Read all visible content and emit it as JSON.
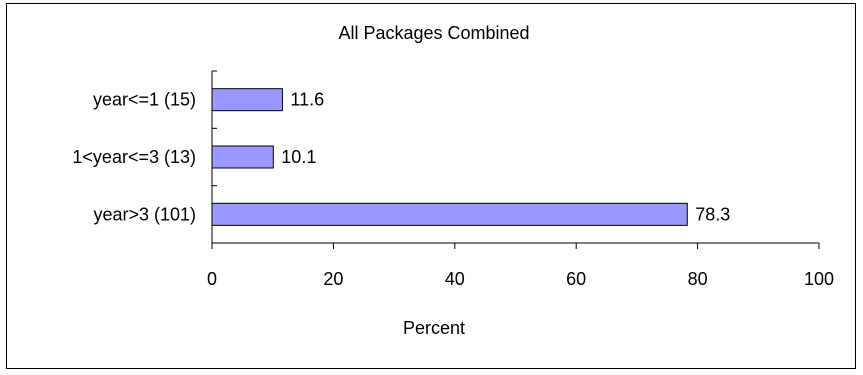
{
  "chart_data": {
    "type": "bar",
    "orientation": "horizontal",
    "title": "All Packages Combined",
    "xlabel": "Percent",
    "ylabel": "",
    "categories": [
      "year<=1  (15)",
      "1<year<=3 (13)",
      "year>3  (101)"
    ],
    "values": [
      11.6,
      10.1,
      78.3
    ],
    "data_labels": [
      "11.6",
      "10.1",
      "78.3"
    ],
    "xlim": [
      0,
      100
    ],
    "x_ticks": [
      0,
      20,
      40,
      60,
      80,
      100
    ],
    "grid": false,
    "legend": "none",
    "colors": {
      "bar_fill": "#9999ff",
      "bar_stroke": "#000000",
      "axis": "#000000"
    }
  }
}
